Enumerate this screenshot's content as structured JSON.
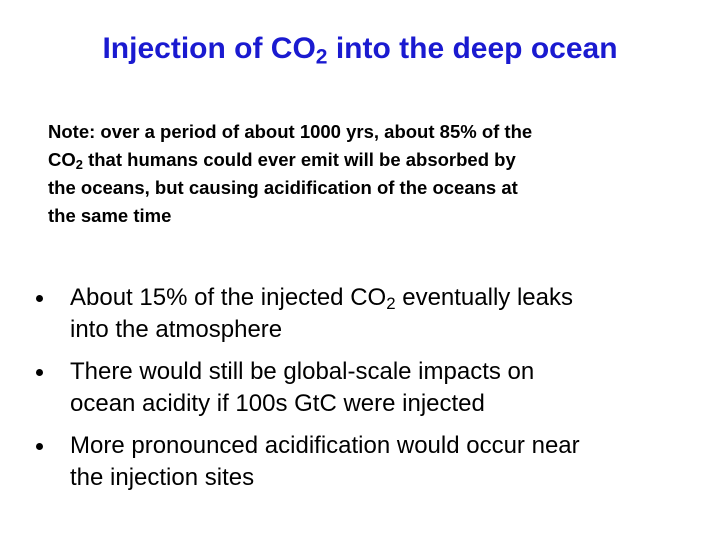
{
  "title": {
    "before": "Injection of CO",
    "sub": "2",
    "after": " into the deep ocean"
  },
  "note": {
    "lines": [
      {
        "text": "Note: over a period of about 1000 yrs, about 85% of the"
      },
      {
        "before": "CO",
        "sub": "2",
        "after": " that humans could ever emit will be absorbed by"
      },
      {
        "text": "the oceans, but causing acidification of the oceans at"
      },
      {
        "text": "the same time"
      }
    ]
  },
  "bullets": [
    {
      "lines": [
        {
          "before": "About 15% of the injected CO",
          "sub": "2",
          "after": " eventually leaks"
        },
        {
          "text": "into the atmosphere"
        }
      ]
    },
    {
      "lines": [
        {
          "text": "There would still be global-scale impacts on"
        },
        {
          "text": "ocean acidity if 100s GtC were injected"
        }
      ]
    },
    {
      "lines": [
        {
          "text": "More pronounced acidification would occur near"
        },
        {
          "text": "the injection sites"
        }
      ]
    }
  ]
}
